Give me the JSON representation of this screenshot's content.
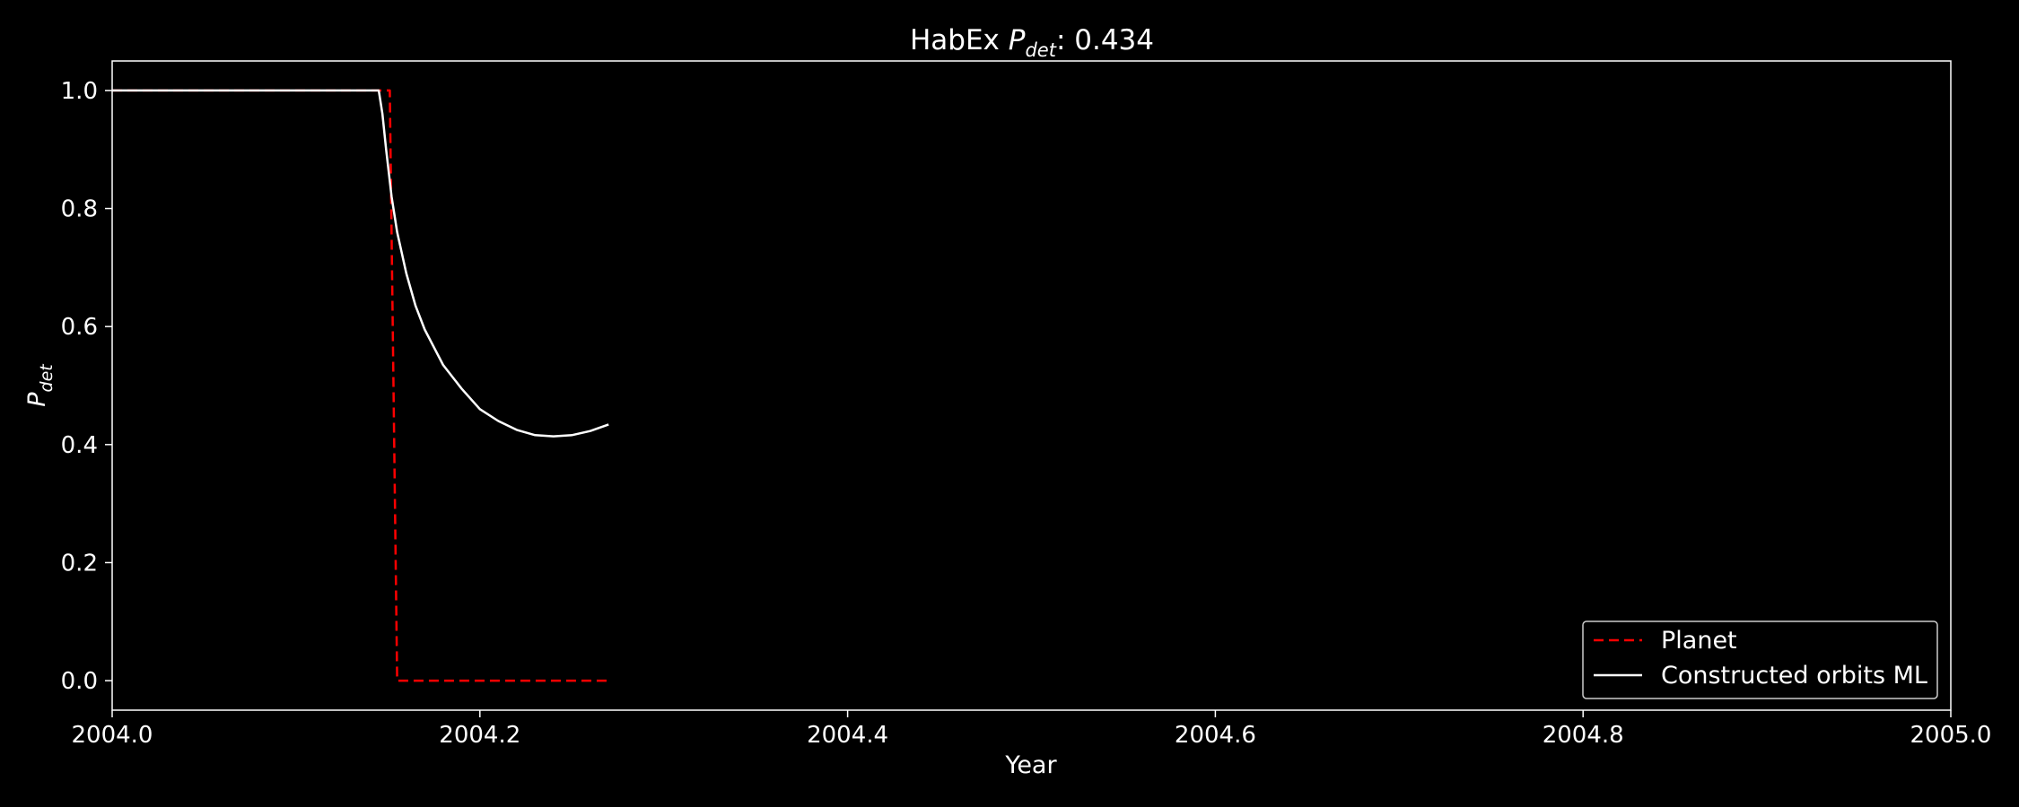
{
  "chart_data": {
    "type": "line",
    "title_prefix": "HabEx ",
    "title_symbol": "P",
    "title_subscript": "det",
    "title_suffix": ": 0.434",
    "xlabel": "Year",
    "ylabel_symbol": "P",
    "ylabel_subscript": "det",
    "xlim": [
      2004.0,
      2005.0
    ],
    "ylim": [
      -0.05,
      1.05
    ],
    "xticks": [
      2004.0,
      2004.2,
      2004.4,
      2004.6,
      2004.8,
      2005.0
    ],
    "xtick_labels": [
      "2004.0",
      "2004.2",
      "2004.4",
      "2004.6",
      "2004.8",
      "2005.0"
    ],
    "yticks": [
      0.0,
      0.2,
      0.4,
      0.6,
      0.8,
      1.0
    ],
    "ytick_labels": [
      "0.0",
      "0.2",
      "0.4",
      "0.6",
      "0.8",
      "1.0"
    ],
    "grid": false,
    "legend_position": "lower-right",
    "background": "#000000",
    "axis_color": "#ffffff",
    "series": [
      {
        "name": "Planet",
        "color": "#ff0000",
        "style": "dashed",
        "x": [
          2004.0,
          2004.151,
          2004.153,
          2004.155,
          2004.27
        ],
        "y": [
          1.0,
          1.0,
          0.5,
          0.0,
          0.0
        ]
      },
      {
        "name": "Constructed orbits ML",
        "color": "#ffffff",
        "style": "solid",
        "x": [
          2004.0,
          2004.145,
          2004.147,
          2004.149,
          2004.152,
          2004.155,
          2004.16,
          2004.165,
          2004.17,
          2004.18,
          2004.19,
          2004.2,
          2004.21,
          2004.22,
          2004.23,
          2004.24,
          2004.25,
          2004.26,
          2004.27
        ],
        "y": [
          1.0,
          1.0,
          0.96,
          0.9,
          0.82,
          0.76,
          0.69,
          0.635,
          0.595,
          0.535,
          0.495,
          0.46,
          0.44,
          0.425,
          0.416,
          0.414,
          0.416,
          0.423,
          0.434
        ]
      }
    ]
  }
}
